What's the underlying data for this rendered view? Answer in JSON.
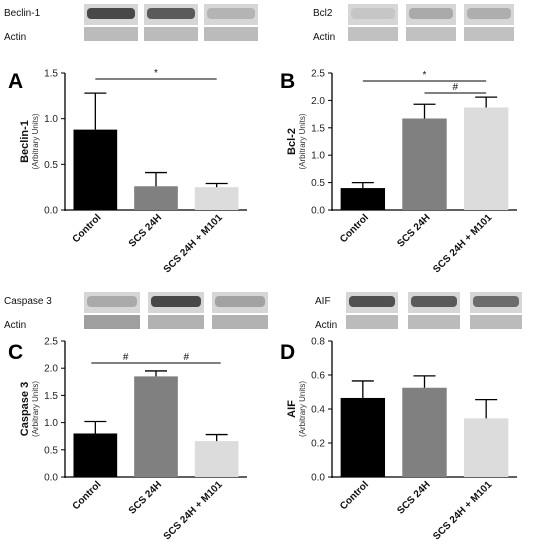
{
  "colors": {
    "control": "#000000",
    "scs24h": "#808080",
    "scs24h_m101": "#dcdcdc",
    "axis": "#000000",
    "blot_band": "#3a3a3a",
    "blot_bg": "#d6d6d6"
  },
  "blots": [
    {
      "protein_label": "Beclin-1",
      "loading_label": "Actin",
      "band_intensity": [
        0.85,
        0.75,
        0.25
      ],
      "loading_intensity": [
        0.15,
        0.15,
        0.15
      ]
    },
    {
      "protein_label": "Bcl2",
      "loading_label": "Actin",
      "band_intensity": [
        0.15,
        0.3,
        0.28
      ],
      "loading_intensity": [
        0.12,
        0.12,
        0.12
      ]
    },
    {
      "protein_label": "Caspase 3",
      "loading_label": "Actin",
      "band_intensity": [
        0.3,
        0.85,
        0.35
      ],
      "loading_intensity": [
        0.3,
        0.2,
        0.2
      ]
    },
    {
      "protein_label": "AIF",
      "loading_label": "Actin",
      "band_intensity": [
        0.8,
        0.75,
        0.65
      ],
      "loading_intensity": [
        0.15,
        0.15,
        0.15
      ]
    }
  ],
  "chart_data": [
    {
      "panel": "A",
      "type": "bar",
      "categories": [
        "Control",
        "SCS 24H",
        "SCS 24H + M101"
      ],
      "values": [
        0.88,
        0.26,
        0.25
      ],
      "errors": [
        0.4,
        0.15,
        0.04
      ],
      "ylabel": "Beclin-1",
      "ylabel_sub": "(Arbitrary Units)",
      "ylim": [
        0,
        1.5
      ],
      "yticks": [
        "0.0",
        "0.5",
        "1.0",
        "1.5"
      ],
      "ytick_values": [
        0,
        0.5,
        1.0,
        1.5
      ],
      "significance": [
        {
          "from": 0,
          "to": 2,
          "label": "*"
        }
      ]
    },
    {
      "panel": "B",
      "type": "bar",
      "categories": [
        "Control",
        "SCS 24H",
        "SCS 24H + M101"
      ],
      "values": [
        0.4,
        1.67,
        1.87
      ],
      "errors": [
        0.1,
        0.26,
        0.19
      ],
      "ylabel": "Bcl-2",
      "ylabel_sub": "(Arbitrary Units)",
      "ylim": [
        0,
        2.5
      ],
      "yticks": [
        "0.0",
        "0.5",
        "1.0",
        "1.5",
        "2.0",
        "2.5"
      ],
      "ytick_values": [
        0,
        0.5,
        1.0,
        1.5,
        2.0,
        2.5
      ],
      "significance": [
        {
          "from": 0,
          "to": 2,
          "label": "*"
        },
        {
          "from": 1,
          "to": 2,
          "label": "#"
        }
      ]
    },
    {
      "panel": "C",
      "type": "bar",
      "categories": [
        "Control",
        "SCS 24H",
        "SCS 24H + M101"
      ],
      "values": [
        0.8,
        1.85,
        0.66
      ],
      "errors": [
        0.22,
        0.1,
        0.12
      ],
      "ylabel": "Caspase 3",
      "ylabel_sub": "(Arbitrary Units)",
      "ylim": [
        0,
        2.5
      ],
      "yticks": [
        "0.0",
        "0.5",
        "1.0",
        "1.5",
        "2.0",
        "2.5"
      ],
      "ytick_values": [
        0,
        0.5,
        1.0,
        1.5,
        2.0,
        2.5
      ],
      "significance": [
        {
          "from": 0,
          "to": 1,
          "label": "#"
        },
        {
          "from": 1,
          "to": 2,
          "label": "#"
        }
      ]
    },
    {
      "panel": "D",
      "type": "bar",
      "categories": [
        "Control",
        "SCS 24H",
        "SCS 24H + M101"
      ],
      "values": [
        0.465,
        0.525,
        0.345
      ],
      "errors": [
        0.1,
        0.07,
        0.11
      ],
      "ylabel": "AIF",
      "ylabel_sub": "(Arbitrary Units)",
      "ylim": [
        0,
        0.8
      ],
      "yticks": [
        "0.0",
        "0.2",
        "0.4",
        "0.6",
        "0.8"
      ],
      "ytick_values": [
        0,
        0.2,
        0.4,
        0.6,
        0.8
      ],
      "significance": []
    }
  ]
}
